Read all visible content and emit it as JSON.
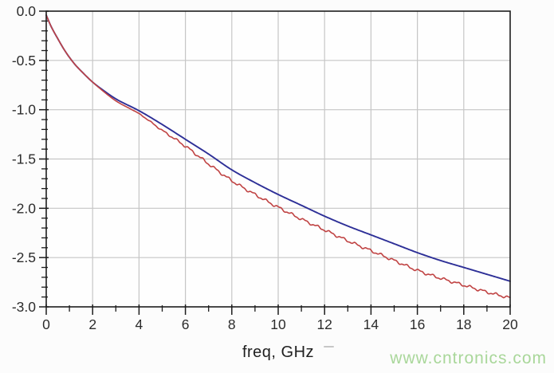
{
  "page": {
    "background": "#fcfcfc",
    "plot_background": "#fefefe"
  },
  "watermark": {
    "text": "www.cntronics.com",
    "color": "#a9d79a"
  },
  "chart_data": {
    "type": "line",
    "title": "",
    "xlabel": "freq, GHz",
    "ylabel": "",
    "xlim": [
      0,
      20
    ],
    "ylim": [
      -3.0,
      0.0
    ],
    "grid": true,
    "legend_position": "none",
    "axis_color": "#1d1d1d",
    "grid_color": "#c6c6c6",
    "tick_label_color": "#2c2c2c",
    "x_minor_tick_step": 1,
    "y_minor_tick_step": 0.1,
    "x_ticks": [
      {
        "value": 0,
        "label": "0"
      },
      {
        "value": 2,
        "label": "2"
      },
      {
        "value": 4,
        "label": "4"
      },
      {
        "value": 6,
        "label": "6"
      },
      {
        "value": 8,
        "label": "8"
      },
      {
        "value": 10,
        "label": "10"
      },
      {
        "value": 12,
        "label": "12"
      },
      {
        "value": 14,
        "label": "14"
      },
      {
        "value": 16,
        "label": "16"
      },
      {
        "value": 18,
        "label": "18"
      },
      {
        "value": 20,
        "label": "20"
      }
    ],
    "y_ticks": [
      {
        "value": 0,
        "label": "0.0"
      },
      {
        "value": -0.5,
        "label": "-0.5"
      },
      {
        "value": -1.0,
        "label": "-1.0"
      },
      {
        "value": -1.5,
        "label": "-1.5"
      },
      {
        "value": -2.0,
        "label": "-2.0"
      },
      {
        "value": -2.5,
        "label": "-2.5"
      },
      {
        "value": -3.0,
        "label": "-3.0"
      }
    ],
    "x": [
      0,
      0.2,
      0.5,
      0.8,
      1.2,
      1.6,
      2,
      2.5,
      3,
      4,
      5,
      6,
      7,
      8,
      9,
      10,
      11,
      12,
      13,
      14,
      15,
      16,
      17,
      18,
      19,
      20
    ],
    "series": [
      {
        "name": "blue-curve",
        "color": "#2d2f97",
        "values": [
          -0.04,
          -0.15,
          -0.28,
          -0.4,
          -0.53,
          -0.63,
          -0.72,
          -0.81,
          -0.89,
          -1.01,
          -1.15,
          -1.3,
          -1.45,
          -1.61,
          -1.74,
          -1.86,
          -1.97,
          -2.08,
          -2.18,
          -2.27,
          -2.36,
          -2.45,
          -2.53,
          -2.6,
          -2.67,
          -2.74
        ]
      },
      {
        "name": "red-curve",
        "color": "#c04343",
        "values": [
          -0.04,
          -0.15,
          -0.28,
          -0.4,
          -0.53,
          -0.63,
          -0.72,
          -0.82,
          -0.91,
          -1.04,
          -1.21,
          -1.37,
          -1.55,
          -1.72,
          -1.86,
          -1.99,
          -2.11,
          -2.22,
          -2.33,
          -2.43,
          -2.53,
          -2.63,
          -2.71,
          -2.78,
          -2.85,
          -2.91
        ],
        "ripple": {
          "amplitude": 0.011,
          "wavelength": 0.55,
          "start": 3.5
        }
      }
    ]
  }
}
